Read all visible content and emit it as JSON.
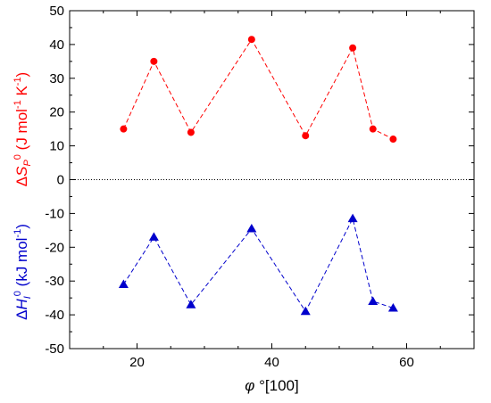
{
  "chart_data": {
    "type": "scatter",
    "title": "",
    "xlabel": {
      "parts": [
        {
          "text": "φ",
          "italic": true
        },
        {
          "text": " °[100]",
          "italic": false
        }
      ]
    },
    "ylabel_upper": {
      "color": "#ff0000",
      "parts": [
        {
          "text": "Δ",
          "italic": false
        },
        {
          "text": "S",
          "italic": true
        },
        {
          "text": "P",
          "italic": true,
          "sub": true
        },
        {
          "text": "0",
          "italic": false,
          "sup": true
        },
        {
          "text": " (J mol",
          "italic": false
        },
        {
          "text": "-1",
          "italic": false,
          "sup": true
        },
        {
          "text": " K",
          "italic": false
        },
        {
          "text": "-1",
          "italic": false,
          "sup": true
        },
        {
          "text": ")",
          "italic": false
        }
      ]
    },
    "ylabel_lower": {
      "color": "#0000cc",
      "parts": [
        {
          "text": "Δ",
          "italic": false
        },
        {
          "text": "H",
          "italic": true
        },
        {
          "text": "I",
          "italic": true,
          "sub": true
        },
        {
          "text": "0",
          "italic": false,
          "sup": true
        },
        {
          "text": " (kJ mol",
          "italic": false
        },
        {
          "text": "-1",
          "italic": false,
          "sup": true
        },
        {
          "text": ")",
          "italic": false
        }
      ]
    },
    "xlim": [
      10,
      70
    ],
    "ylim": [
      -50,
      50
    ],
    "xticks": [
      20,
      40,
      60
    ],
    "yticks": [
      -50,
      -40,
      -30,
      -20,
      -10,
      0,
      10,
      20,
      30,
      40,
      50
    ],
    "grid": false,
    "legend": "none",
    "zero_line": {
      "y": 0,
      "style": "dotted",
      "color": "#000000"
    },
    "series": [
      {
        "marker": "circle",
        "color": "#ff0000",
        "line_style": "dashed",
        "x": [
          18,
          22.5,
          28,
          37,
          45,
          52,
          55,
          58
        ],
        "y": [
          15,
          35,
          14,
          41.5,
          13,
          39,
          15,
          12
        ]
      },
      {
        "marker": "triangle",
        "color": "#0000cc",
        "line_style": "dashed",
        "x": [
          18,
          22.5,
          28,
          37,
          45,
          52,
          55,
          58
        ],
        "y": [
          -31,
          -17,
          -37,
          -14.5,
          -39,
          -11.5,
          -36,
          -38
        ]
      }
    ]
  }
}
